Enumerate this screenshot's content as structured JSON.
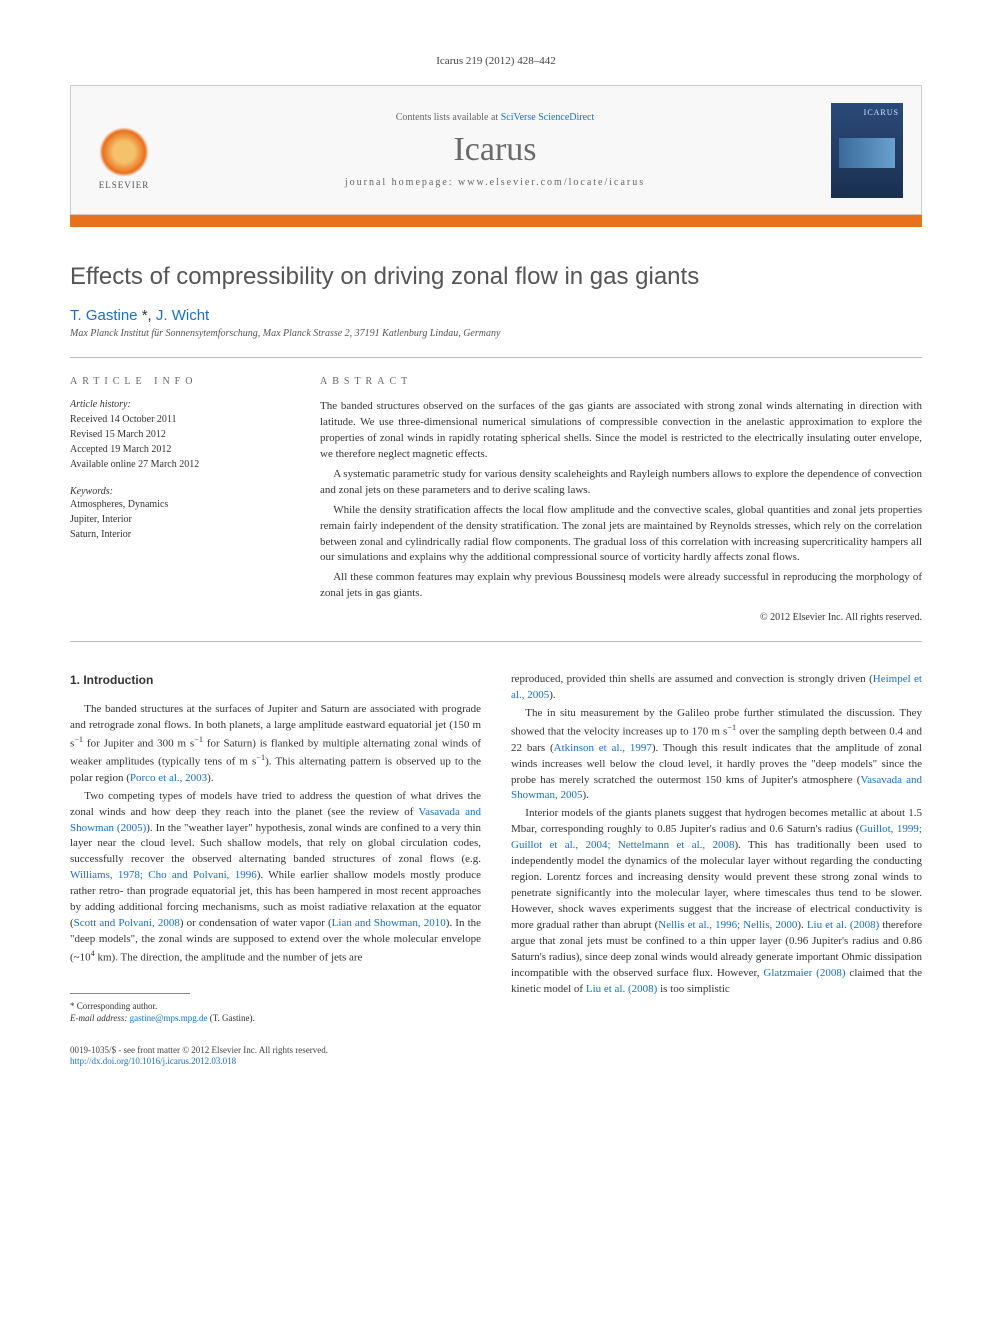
{
  "journal_ref": "Icarus 219 (2012) 428–442",
  "header": {
    "contents_pre": "Contents lists available at ",
    "contents_link": "SciVerse ScienceDirect",
    "journal": "Icarus",
    "homepage_pre": "journal homepage: ",
    "homepage_url": "www.elsevier.com/locate/icarus",
    "elsevier": "ELSEVIER",
    "cover_label": "ICARUS"
  },
  "article": {
    "title": "Effects of compressibility on driving zonal flow in gas giants",
    "author1": "T. Gastine",
    "corr_mark": "*",
    "author2": "J. Wicht",
    "affiliation": "Max Planck Institut für Sonnensytemforschung, Max Planck Strasse 2, 37191 Katlenburg Lindau, Germany"
  },
  "info": {
    "heading": "article info",
    "history_label": "Article history:",
    "received": "Received 14 October 2011",
    "revised": "Revised 15 March 2012",
    "accepted": "Accepted 19 March 2012",
    "available": "Available online 27 March 2012",
    "keywords_label": "Keywords:",
    "kw1": "Atmospheres, Dynamics",
    "kw2": "Jupiter, Interior",
    "kw3": "Saturn, Interior"
  },
  "abstract": {
    "heading": "abstract",
    "p1": "The banded structures observed on the surfaces of the gas giants are associated with strong zonal winds alternating in direction with latitude. We use three-dimensional numerical simulations of compressible convection in the anelastic approximation to explore the properties of zonal winds in rapidly rotating spherical shells. Since the model is restricted to the electrically insulating outer envelope, we therefore neglect magnetic effects.",
    "p2": "A systematic parametric study for various density scaleheights and Rayleigh numbers allows to explore the dependence of convection and zonal jets on these parameters and to derive scaling laws.",
    "p3": "While the density stratification affects the local flow amplitude and the convective scales, global quantities and zonal jets properties remain fairly independent of the density stratification. The zonal jets are maintained by Reynolds stresses, which rely on the correlation between zonal and cylindrically radial flow components. The gradual loss of this correlation with increasing supercriticality hampers all our simulations and explains why the additional compressional source of vorticity hardly affects zonal flows.",
    "p4": "All these common features may explain why previous Boussinesq models were already successful in reproducing the morphology of zonal jets in gas giants.",
    "copyright": "© 2012 Elsevier Inc. All rights reserved."
  },
  "intro": {
    "heading": "1. Introduction",
    "left": {
      "p1_a": "The banded structures at the surfaces of Jupiter and Saturn are associated with prograde and retrograde zonal flows. In both planets, a large amplitude eastward equatorial jet (150 m s",
      "p1_b": " for Jupiter and 300 m s",
      "p1_c": " for Saturn) is flanked by multiple alternating zonal winds of weaker amplitudes (typically tens of m s",
      "p1_d": "). This alternating pattern is observed up to the polar region (",
      "p1_ref": "Porco et al., 2003",
      "p1_e": ").",
      "p2_a": "Two competing types of models have tried to address the question of what drives the zonal winds and how deep they reach into the planet (see the review of ",
      "p2_ref1": "Vasavada and Showman (2005)",
      "p2_b": "). In the \"weather layer\" hypothesis, zonal winds are confined to a very thin layer near the cloud level. Such shallow models, that rely on global circulation codes, successfully recover the observed alternating banded structures of zonal flows (e.g. ",
      "p2_ref2": "Williams, 1978; Cho and Polvani, 1996",
      "p2_c": "). While earlier shallow models mostly produce rather retro- than prograde equatorial jet, this has been hampered in most recent approaches by adding additional forcing mechanisms, such as moist radiative relaxation at the equator (",
      "p2_ref3": "Scott and Polvani, 2008",
      "p2_d": ") or condensation of water vapor (",
      "p2_ref4": "Lian and Showman, 2010",
      "p2_e": "). In the \"deep models\", the zonal winds are supposed to extend over the whole molecular envelope (~10",
      "p2_f": " km). The direction, the amplitude and the number of jets are"
    },
    "right": {
      "p1_a": "reproduced, provided thin shells are assumed and convection is strongly driven (",
      "p1_ref": "Heimpel et al., 2005",
      "p1_b": ").",
      "p2_a": "The in situ measurement by the Galileo probe further stimulated the discussion. They showed that the velocity increases up to 170 m s",
      "p2_b": " over the sampling depth between 0.4 and 22 bars (",
      "p2_ref1": "Atkinson et al., 1997",
      "p2_c": "). Though this result indicates that the amplitude of zonal winds increases well below the cloud level, it hardly proves the \"deep models\" since the probe has merely scratched the outermost 150 kms of Jupiter's atmosphere (",
      "p2_ref2": "Vasavada and Showman, 2005",
      "p2_d": ").",
      "p3_a": "Interior models of the giants planets suggest that hydrogen becomes metallic at about 1.5 Mbar, corresponding roughly to 0.85 Jupiter's radius and 0.6 Saturn's radius (",
      "p3_ref1": "Guillot, 1999; Guillot et al., 2004; Nettelmann et al., 2008",
      "p3_b": "). This has traditionally been used to independently model the dynamics of the molecular layer without regarding the conducting region. Lorentz forces and increasing density would prevent these strong zonal winds to penetrate significantly into the molecular layer, where timescales thus tend to be slower. However, shock waves experiments suggest that the increase of electrical conductivity is more gradual rather than abrupt (",
      "p3_ref2": "Nellis et al., 1996; Nellis, 2000",
      "p3_c": "). ",
      "p3_ref3": "Liu et al. (2008)",
      "p3_d": " therefore argue that zonal jets must be confined to a thin upper layer (0.96 Jupiter's radius and 0.86 Saturn's radius), since deep zonal winds would already generate important Ohmic dissipation incompatible with the observed surface flux. However, ",
      "p3_ref4": "Glatzmaier (2008)",
      "p3_e": " claimed that the kinetic model of ",
      "p3_ref5": "Liu et al. (2008)",
      "p3_f": " is too simplistic"
    }
  },
  "footnote": {
    "corr": "* Corresponding author.",
    "email_label": "E-mail address:",
    "email": "gastine@mps.mpg.de",
    "email_who": "(T. Gastine)."
  },
  "bottom": {
    "line1": "0019-1035/$ - see front matter © 2012 Elsevier Inc. All rights reserved.",
    "doi": "http://dx.doi.org/10.1016/j.icarus.2012.03.018"
  },
  "style": {
    "accent_color": "#e9711c",
    "link_color": "#1a6fc4",
    "body_font": "Georgia",
    "title_color": "#555",
    "background": "#ffffff"
  }
}
